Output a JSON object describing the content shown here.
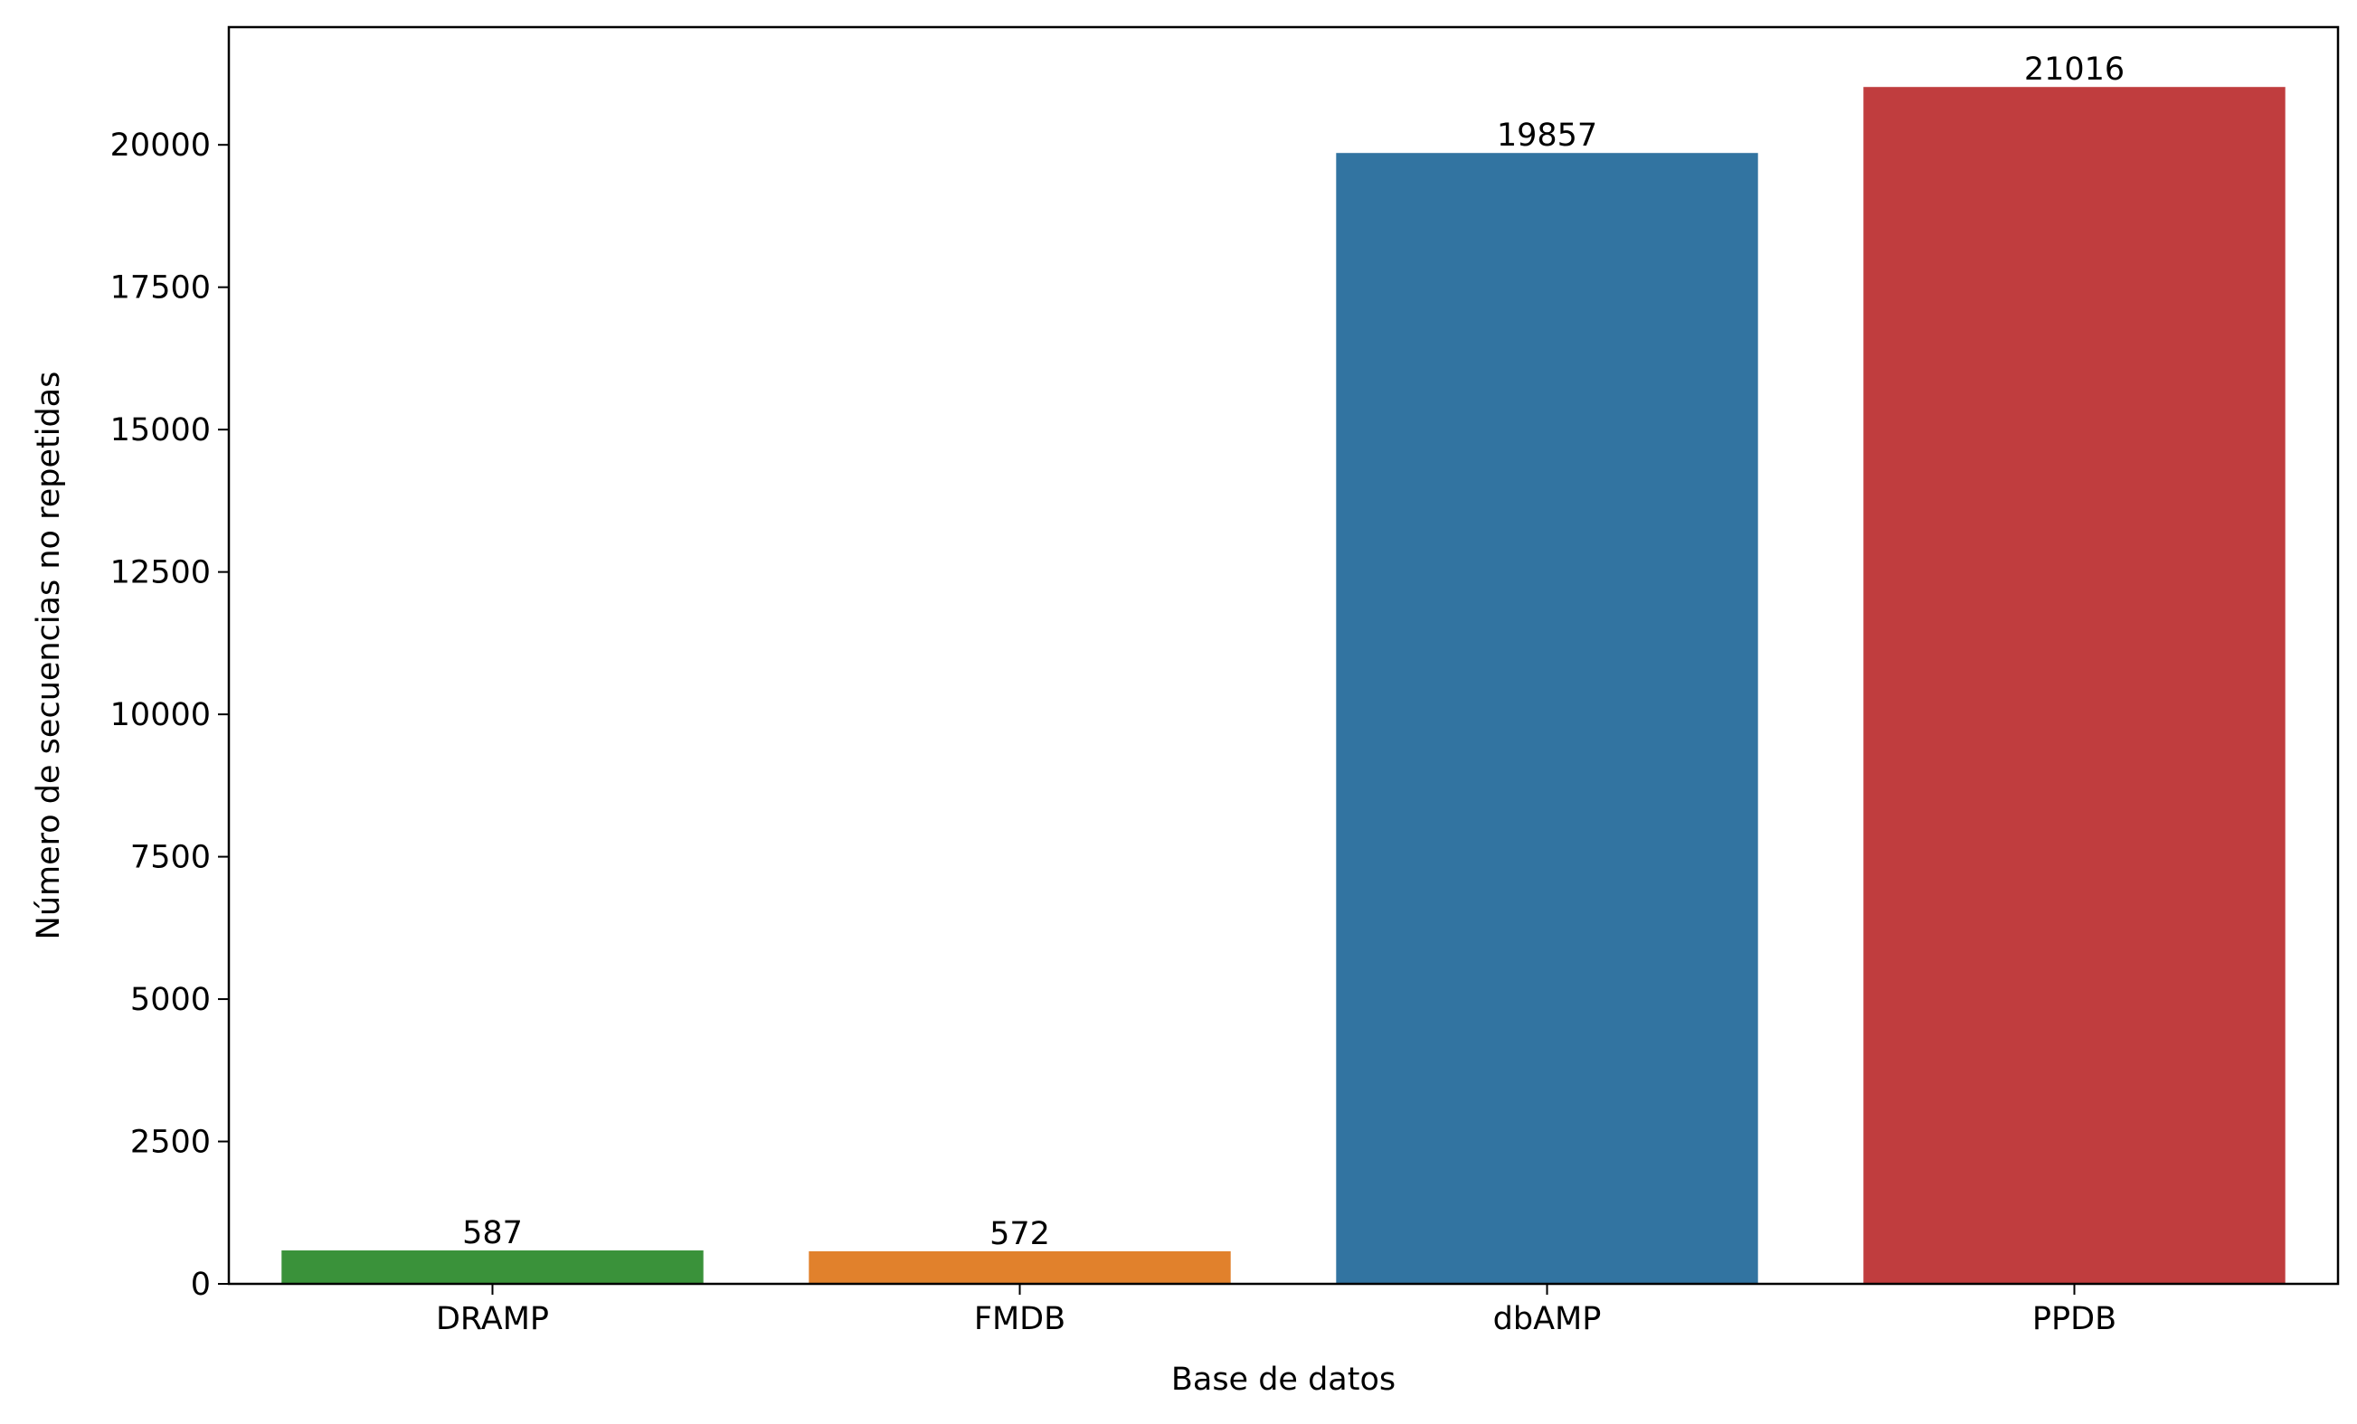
{
  "chart_data": {
    "type": "bar",
    "categories": [
      "DRAMP",
      "FMDB",
      "dbAMP",
      "PPDB"
    ],
    "values": [
      587,
      572,
      19857,
      21016
    ],
    "value_labels": [
      "587",
      "572",
      "19857",
      "21016"
    ],
    "colors": [
      "#3a923a",
      "#e1812c",
      "#3274a1",
      "#c03d3e"
    ],
    "xlabel": "Base de datos",
    "ylabel": "Número de secuencias no repetidas",
    "ylim": [
      0,
      22067
    ],
    "yticks": [
      0,
      2500,
      5000,
      7500,
      10000,
      12500,
      15000,
      17500,
      20000
    ],
    "ytick_labels": [
      "0",
      "2500",
      "5000",
      "7500",
      "10000",
      "12500",
      "15000",
      "17500",
      "20000"
    ],
    "grid": false,
    "legend": "none"
  }
}
